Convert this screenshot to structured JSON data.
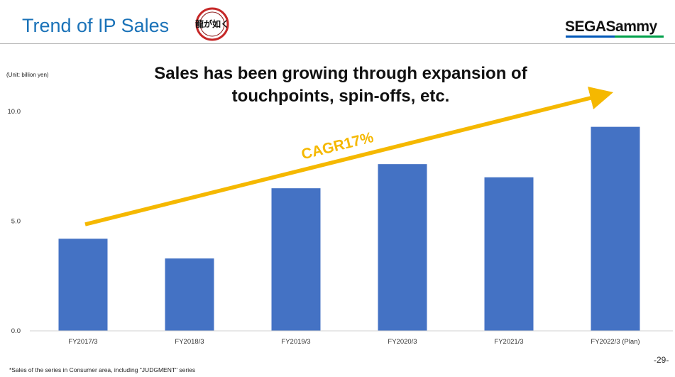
{
  "header": {
    "title": "Trend of IP Sales",
    "series_logo_text": "龍が如く",
    "company_logo_text": "SEGASammy"
  },
  "headline": {
    "line1": "Sales has been growing through expansion of",
    "line2": "touchpoints, spin-offs, etc."
  },
  "unit_label": "(Unit: billion yen)",
  "footnote": "*Sales of the series in Consumer area, including \"JUDGMENT\" series",
  "page_number": "-29-",
  "colors": {
    "title_blue": "#1a72b8",
    "bar_blue": "#4472c4",
    "arrow_yellow": "#f5b800",
    "logo_blue": "#0057b7",
    "logo_green": "#00a04a"
  },
  "chart_data": {
    "type": "bar",
    "categories": [
      "FY2017/3",
      "FY2018/3",
      "FY2019/3",
      "FY2020/3",
      "FY2021/3",
      "FY2022/3 (Plan)"
    ],
    "values": [
      4.2,
      3.3,
      6.5,
      7.6,
      7.0,
      9.3
    ],
    "yticks": [
      "0.0",
      "5.0",
      "10.0"
    ],
    "ylim": [
      0,
      10
    ],
    "annotation": "CAGR17%",
    "ylabel": "(Unit: billion yen)",
    "grid": false
  }
}
